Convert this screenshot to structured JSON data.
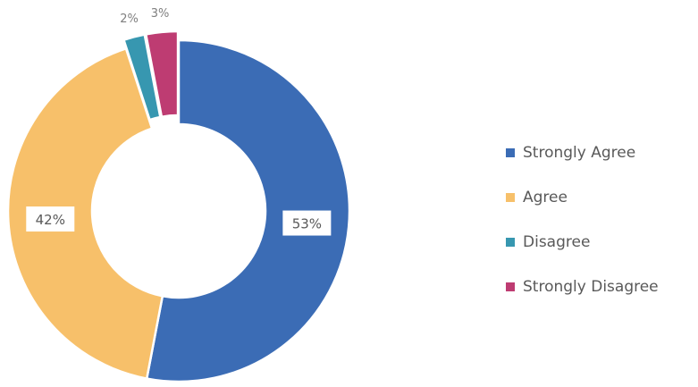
{
  "chart_data": {
    "type": "pie",
    "donut": true,
    "categories": [
      "Strongly Agree",
      "Agree",
      "Disagree",
      "Strongly Disagree"
    ],
    "values": [
      53,
      42,
      2,
      3
    ],
    "data_labels": [
      "53%",
      "42%",
      "2%",
      "3%"
    ],
    "exploded": [
      false,
      false,
      true,
      true
    ],
    "colors": [
      "#3b6cb5",
      "#f7c06a",
      "#3797b0",
      "#be3c72"
    ],
    "legend_position": "right",
    "title": ""
  }
}
